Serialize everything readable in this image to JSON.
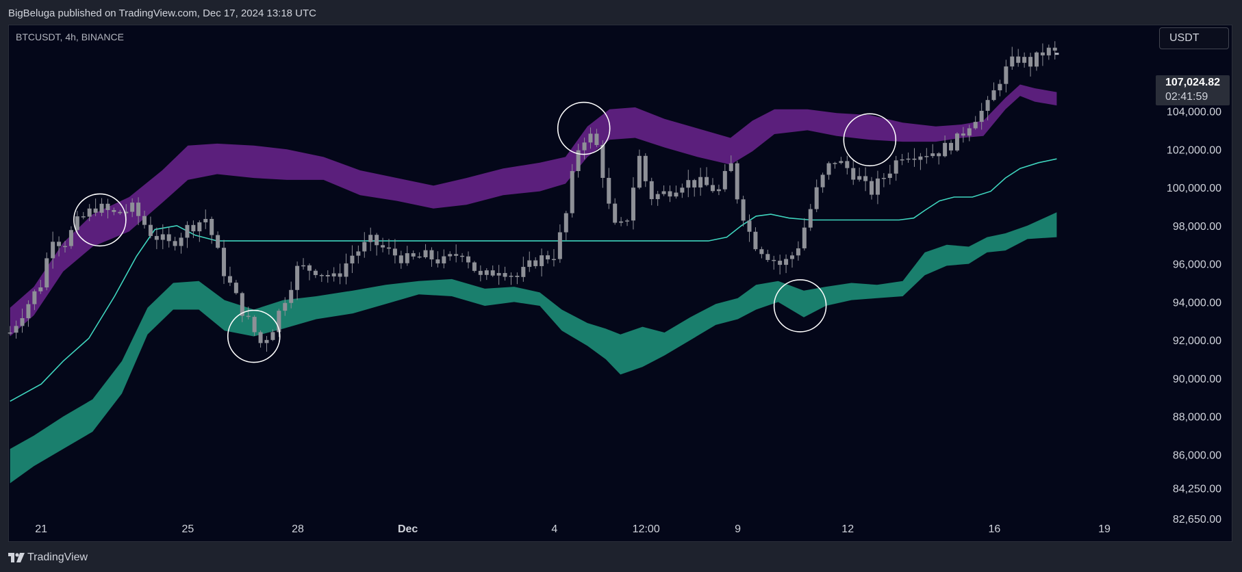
{
  "header": {
    "published": "BigBeluga published on TradingView.com, Dec 17, 2024 13:18 UTC"
  },
  "symbol": "BTCUSDT, 4h, BINANCE",
  "currency": "USDT",
  "last_price": {
    "value": "107,024.82",
    "countdown": "02:41:59"
  },
  "footer": {
    "brand": "TradingView"
  },
  "colors": {
    "background": "#040719",
    "upper_band": "#5b1f7c",
    "lower_band": "#1a7f6d",
    "basis": "#3fd6bf",
    "candle": "#8e9097",
    "circle": "#ffffff"
  },
  "chart_data": {
    "type": "candlestick",
    "instrument": "BTCUSDT",
    "timeframe": "4h",
    "exchange": "BINANCE",
    "x_tick_labels": [
      "21",
      "25",
      "28",
      "Dec",
      "4",
      "12:00",
      "9",
      "12",
      "16",
      "19"
    ],
    "x_tick_days": [
      21,
      25,
      28,
      31,
      35,
      37.5,
      40,
      43,
      47,
      50
    ],
    "y_tick_labels": [
      "104,000.00",
      "102,000.00",
      "100,000.00",
      "98,000.00",
      "96,000.00",
      "94,000.00",
      "92,000.00",
      "90,000.00",
      "88,000.00",
      "86,000.00",
      "84,250.00",
      "82,650.00"
    ],
    "y_tick_values": [
      104000,
      102000,
      100000,
      98000,
      96000,
      94000,
      92000,
      90000,
      88000,
      86000,
      84250,
      82650
    ],
    "ylim": [
      81500,
      108500
    ],
    "xlim": [
      20.1,
      51.4
    ],
    "last_price": 107024.82,
    "close_path": [
      [
        20.15,
        92400
      ],
      [
        20.5,
        93500
      ],
      [
        21.0,
        95000
      ],
      [
        21.3,
        97500
      ],
      [
        21.6,
        97000
      ],
      [
        22.0,
        98200
      ],
      [
        22.5,
        99000
      ],
      [
        23.0,
        98600
      ],
      [
        23.5,
        98900
      ],
      [
        24.0,
        97600
      ],
      [
        24.5,
        97000
      ],
      [
        25.0,
        97900
      ],
      [
        25.5,
        98400
      ],
      [
        26.0,
        95500
      ],
      [
        26.5,
        93500
      ],
      [
        27.0,
        91800
      ],
      [
        27.3,
        92600
      ],
      [
        27.6,
        94000
      ],
      [
        28.0,
        95800
      ],
      [
        28.5,
        95700
      ],
      [
        29.0,
        95200
      ],
      [
        29.5,
        96500
      ],
      [
        30.0,
        97200
      ],
      [
        30.5,
        96600
      ],
      [
        31.0,
        96200
      ],
      [
        31.5,
        96400
      ],
      [
        32.0,
        96100
      ],
      [
        32.5,
        96700
      ],
      [
        33.0,
        95200
      ],
      [
        33.5,
        95800
      ],
      [
        34.0,
        95300
      ],
      [
        34.5,
        96200
      ],
      [
        35.0,
        96500
      ],
      [
        35.3,
        98400
      ],
      [
        35.6,
        101900
      ],
      [
        35.9,
        102900
      ],
      [
        36.2,
        102000
      ],
      [
        36.5,
        98800
      ],
      [
        36.7,
        97600
      ],
      [
        37.0,
        98500
      ],
      [
        37.3,
        101700
      ],
      [
        37.6,
        99500
      ],
      [
        38.0,
        99700
      ],
      [
        38.5,
        100300
      ],
      [
        39.0,
        100200
      ],
      [
        39.5,
        99800
      ],
      [
        39.8,
        101300
      ],
      [
        40.0,
        99400
      ],
      [
        40.4,
        97200
      ],
      [
        40.8,
        96500
      ],
      [
        41.2,
        95900
      ],
      [
        41.6,
        96700
      ],
      [
        41.9,
        98400
      ],
      [
        42.2,
        100100
      ],
      [
        42.6,
        101500
      ],
      [
        43.0,
        101000
      ],
      [
        43.3,
        100500
      ],
      [
        43.6,
        99700
      ],
      [
        44.0,
        100600
      ],
      [
        44.5,
        101800
      ],
      [
        45.0,
        101800
      ],
      [
        45.5,
        101900
      ],
      [
        46.0,
        102500
      ],
      [
        46.4,
        103600
      ],
      [
        46.8,
        104200
      ],
      [
        47.2,
        105900
      ],
      [
        47.6,
        106800
      ],
      [
        48.0,
        106500
      ],
      [
        48.4,
        107200
      ],
      [
        48.7,
        107000
      ]
    ],
    "upper_band": [
      [
        20.15,
        92200,
        93700
      ],
      [
        20.8,
        93300,
        94800
      ],
      [
        21.6,
        95600,
        97100
      ],
      [
        22.4,
        96900,
        98600
      ],
      [
        23.4,
        97700,
        99500
      ],
      [
        24.3,
        99200,
        100900
      ],
      [
        25.0,
        100400,
        102200
      ],
      [
        25.8,
        100700,
        102300
      ],
      [
        26.8,
        100500,
        102200
      ],
      [
        27.7,
        100400,
        102000
      ],
      [
        28.7,
        100400,
        101600
      ],
      [
        29.7,
        99600,
        100900
      ],
      [
        30.7,
        99300,
        100500
      ],
      [
        31.7,
        98900,
        100100
      ],
      [
        32.6,
        99100,
        100500
      ],
      [
        33.6,
        99600,
        101000
      ],
      [
        34.6,
        99800,
        101300
      ],
      [
        35.3,
        100200,
        101600
      ],
      [
        35.9,
        101600,
        103200
      ],
      [
        36.5,
        102500,
        104100
      ],
      [
        37.2,
        102600,
        104200
      ],
      [
        38.0,
        102100,
        103600
      ],
      [
        38.9,
        101600,
        103100
      ],
      [
        39.8,
        101200,
        102600
      ],
      [
        40.4,
        101900,
        103500
      ],
      [
        41.0,
        102800,
        104100
      ],
      [
        41.9,
        103000,
        104100
      ],
      [
        42.7,
        102700,
        103900
      ],
      [
        43.6,
        102500,
        103800
      ],
      [
        44.5,
        102400,
        103400
      ],
      [
        45.4,
        102400,
        103200
      ],
      [
        46.1,
        102600,
        103300
      ],
      [
        46.7,
        102700,
        103500
      ],
      [
        47.3,
        104100,
        104700
      ],
      [
        47.7,
        104800,
        105400
      ],
      [
        48.1,
        104500,
        105200
      ],
      [
        48.7,
        104300,
        105000
      ]
    ],
    "lower_band": [
      [
        20.15,
        84500,
        86300
      ],
      [
        20.8,
        85400,
        87000
      ],
      [
        21.6,
        86300,
        88000
      ],
      [
        22.4,
        87200,
        88900
      ],
      [
        23.2,
        89200,
        90900
      ],
      [
        23.9,
        92300,
        93700
      ],
      [
        24.6,
        93600,
        95000
      ],
      [
        25.3,
        93600,
        95100
      ],
      [
        26.0,
        92500,
        94100
      ],
      [
        26.8,
        92200,
        93600
      ],
      [
        27.6,
        92600,
        94100
      ],
      [
        28.5,
        93100,
        94300
      ],
      [
        29.5,
        93400,
        94600
      ],
      [
        30.4,
        93900,
        94900
      ],
      [
        31.3,
        94400,
        95100
      ],
      [
        32.2,
        94300,
        95200
      ],
      [
        33.1,
        93800,
        94700
      ],
      [
        33.9,
        94000,
        94800
      ],
      [
        34.6,
        93800,
        94500
      ],
      [
        35.2,
        92500,
        93600
      ],
      [
        35.9,
        91700,
        92900
      ],
      [
        36.4,
        91000,
        92600
      ],
      [
        36.8,
        90200,
        92300
      ],
      [
        37.4,
        90600,
        92700
      ],
      [
        38.0,
        91200,
        92400
      ],
      [
        38.7,
        92000,
        93200
      ],
      [
        39.4,
        92800,
        93900
      ],
      [
        40.0,
        93100,
        94200
      ],
      [
        40.5,
        93600,
        94900
      ],
      [
        41.1,
        94000,
        95100
      ],
      [
        41.8,
        93200,
        94600
      ],
      [
        42.4,
        93800,
        94800
      ],
      [
        43.1,
        94100,
        95000
      ],
      [
        43.8,
        94200,
        94900
      ],
      [
        44.5,
        94300,
        95100
      ],
      [
        45.1,
        95400,
        96600
      ],
      [
        45.7,
        95900,
        97000
      ],
      [
        46.3,
        96000,
        96900
      ],
      [
        46.8,
        96600,
        97400
      ],
      [
        47.3,
        96700,
        97600
      ],
      [
        47.9,
        97300,
        98000
      ],
      [
        48.7,
        97400,
        98700
      ]
    ],
    "basis": [
      [
        20.15,
        88800
      ],
      [
        21.0,
        89700
      ],
      [
        21.6,
        90900
      ],
      [
        22.3,
        92100
      ],
      [
        23.0,
        94300
      ],
      [
        23.6,
        96400
      ],
      [
        24.1,
        97800
      ],
      [
        24.7,
        98000
      ],
      [
        25.2,
        97500
      ],
      [
        25.8,
        97200
      ],
      [
        26.5,
        97200
      ],
      [
        27.5,
        97200
      ],
      [
        28.5,
        97200
      ],
      [
        29.5,
        97200
      ],
      [
        30.5,
        97200
      ],
      [
        31.5,
        97200
      ],
      [
        32.5,
        97200
      ],
      [
        33.5,
        97200
      ],
      [
        34.5,
        97200
      ],
      [
        35.5,
        97200
      ],
      [
        36.5,
        97200
      ],
      [
        37.5,
        97200
      ],
      [
        38.5,
        97200
      ],
      [
        39.2,
        97200
      ],
      [
        39.7,
        97400
      ],
      [
        40.1,
        98000
      ],
      [
        40.5,
        98500
      ],
      [
        40.9,
        98600
      ],
      [
        41.4,
        98400
      ],
      [
        42.0,
        98300
      ],
      [
        42.8,
        98300
      ],
      [
        43.6,
        98300
      ],
      [
        44.4,
        98300
      ],
      [
        44.8,
        98400
      ],
      [
        45.1,
        98800
      ],
      [
        45.5,
        99300
      ],
      [
        45.9,
        99500
      ],
      [
        46.4,
        99500
      ],
      [
        46.9,
        99800
      ],
      [
        47.3,
        100500
      ],
      [
        47.7,
        101000
      ],
      [
        48.2,
        101300
      ],
      [
        48.7,
        101500
      ]
    ],
    "highlight_circles": [
      {
        "x": 22.6,
        "y": 98300
      },
      {
        "x": 26.8,
        "y": 92200
      },
      {
        "x": 35.8,
        "y": 103100
      },
      {
        "x": 41.7,
        "y": 93800
      },
      {
        "x": 43.6,
        "y": 102500
      }
    ]
  }
}
